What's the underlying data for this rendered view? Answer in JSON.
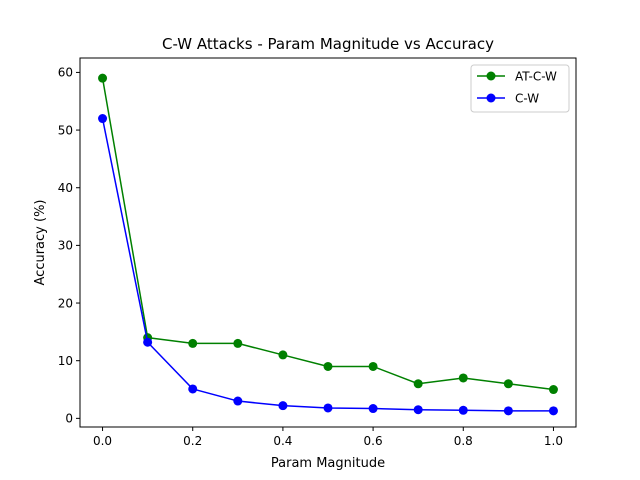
{
  "chart_data": {
    "type": "line",
    "title": "C-W Attacks - Param Magnitude vs Accuracy",
    "xlabel": "Param Magnitude",
    "ylabel": "Accuracy (%)",
    "xlim": [
      -0.05,
      1.05
    ],
    "ylim": [
      -1.5,
      62.5
    ],
    "xticks": [
      0.0,
      0.2,
      0.4,
      0.6,
      0.8,
      1.0
    ],
    "xtick_labels": [
      "0.0",
      "0.2",
      "0.4",
      "0.6",
      "0.8",
      "1.0"
    ],
    "yticks": [
      0,
      10,
      20,
      30,
      40,
      50,
      60
    ],
    "ytick_labels": [
      "0",
      "10",
      "20",
      "30",
      "40",
      "50",
      "60"
    ],
    "grid": false,
    "legend_position": "top-right",
    "x": [
      0.0,
      0.1,
      0.2,
      0.3,
      0.4,
      0.5,
      0.6,
      0.7,
      0.8,
      0.9,
      1.0
    ],
    "series": [
      {
        "name": "AT-C-W",
        "color": "#008000",
        "marker": "circle",
        "values": [
          59,
          14,
          13,
          13,
          11,
          9,
          9,
          6,
          7,
          6,
          5
        ]
      },
      {
        "name": "C-W",
        "color": "#0000ff",
        "marker": "circle",
        "values": [
          52,
          13.2,
          5.1,
          3.0,
          2.2,
          1.8,
          1.7,
          1.5,
          1.4,
          1.3,
          1.3
        ]
      }
    ]
  }
}
